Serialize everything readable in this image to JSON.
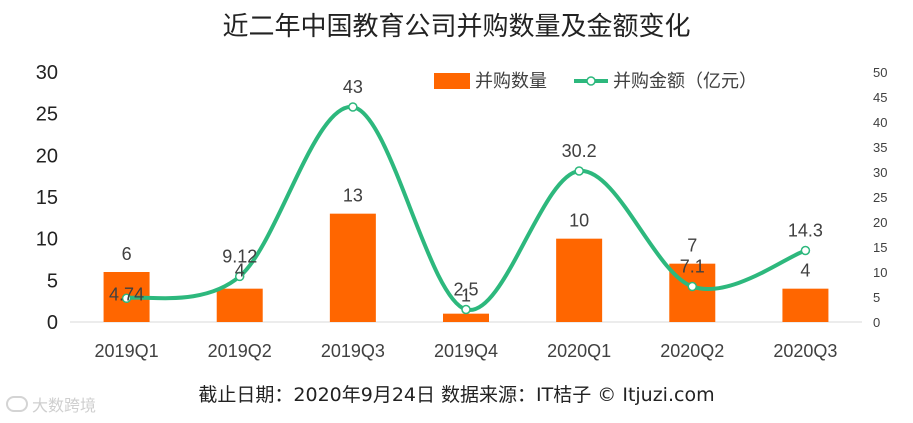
{
  "title": "近二年中国教育公司并购数量及金额变化",
  "footer": "截止日期：2020年9月24日      数据来源：IT桔子 © Itjuzi.com",
  "watermark": "大数跨境",
  "chart_data": {
    "type": "bar",
    "categories": [
      "2019Q1",
      "2019Q2",
      "2019Q3",
      "2019Q4",
      "2020Q1",
      "2020Q2",
      "2020Q3"
    ],
    "series": [
      {
        "name": "并购数量",
        "type": "bar",
        "axis": "left",
        "color": "#FF6600",
        "values": [
          6,
          4,
          13,
          1,
          10,
          7,
          4
        ],
        "labels": [
          "6",
          "4",
          "13",
          "1",
          "10",
          "7",
          "4"
        ]
      },
      {
        "name": "并购金额（亿元）",
        "type": "line",
        "axis": "right",
        "color": "#2DB87D",
        "values": [
          4.74,
          9.12,
          43,
          2.5,
          30.2,
          7.1,
          14.3
        ],
        "labels": [
          "4.74",
          "9.12",
          "43",
          "2.5",
          "30.2",
          "7.1",
          "14.3"
        ]
      }
    ],
    "ylim_left": [
      0,
      30
    ],
    "yticks_left": [
      "0",
      "5",
      "10",
      "15",
      "20",
      "25",
      "30"
    ],
    "ylim_right": [
      0,
      50
    ],
    "yticks_right": [
      "0",
      "5",
      "10",
      "15",
      "20",
      "25",
      "30",
      "35",
      "40",
      "45",
      "50"
    ],
    "legend_position": "top-right",
    "grid": false
  }
}
